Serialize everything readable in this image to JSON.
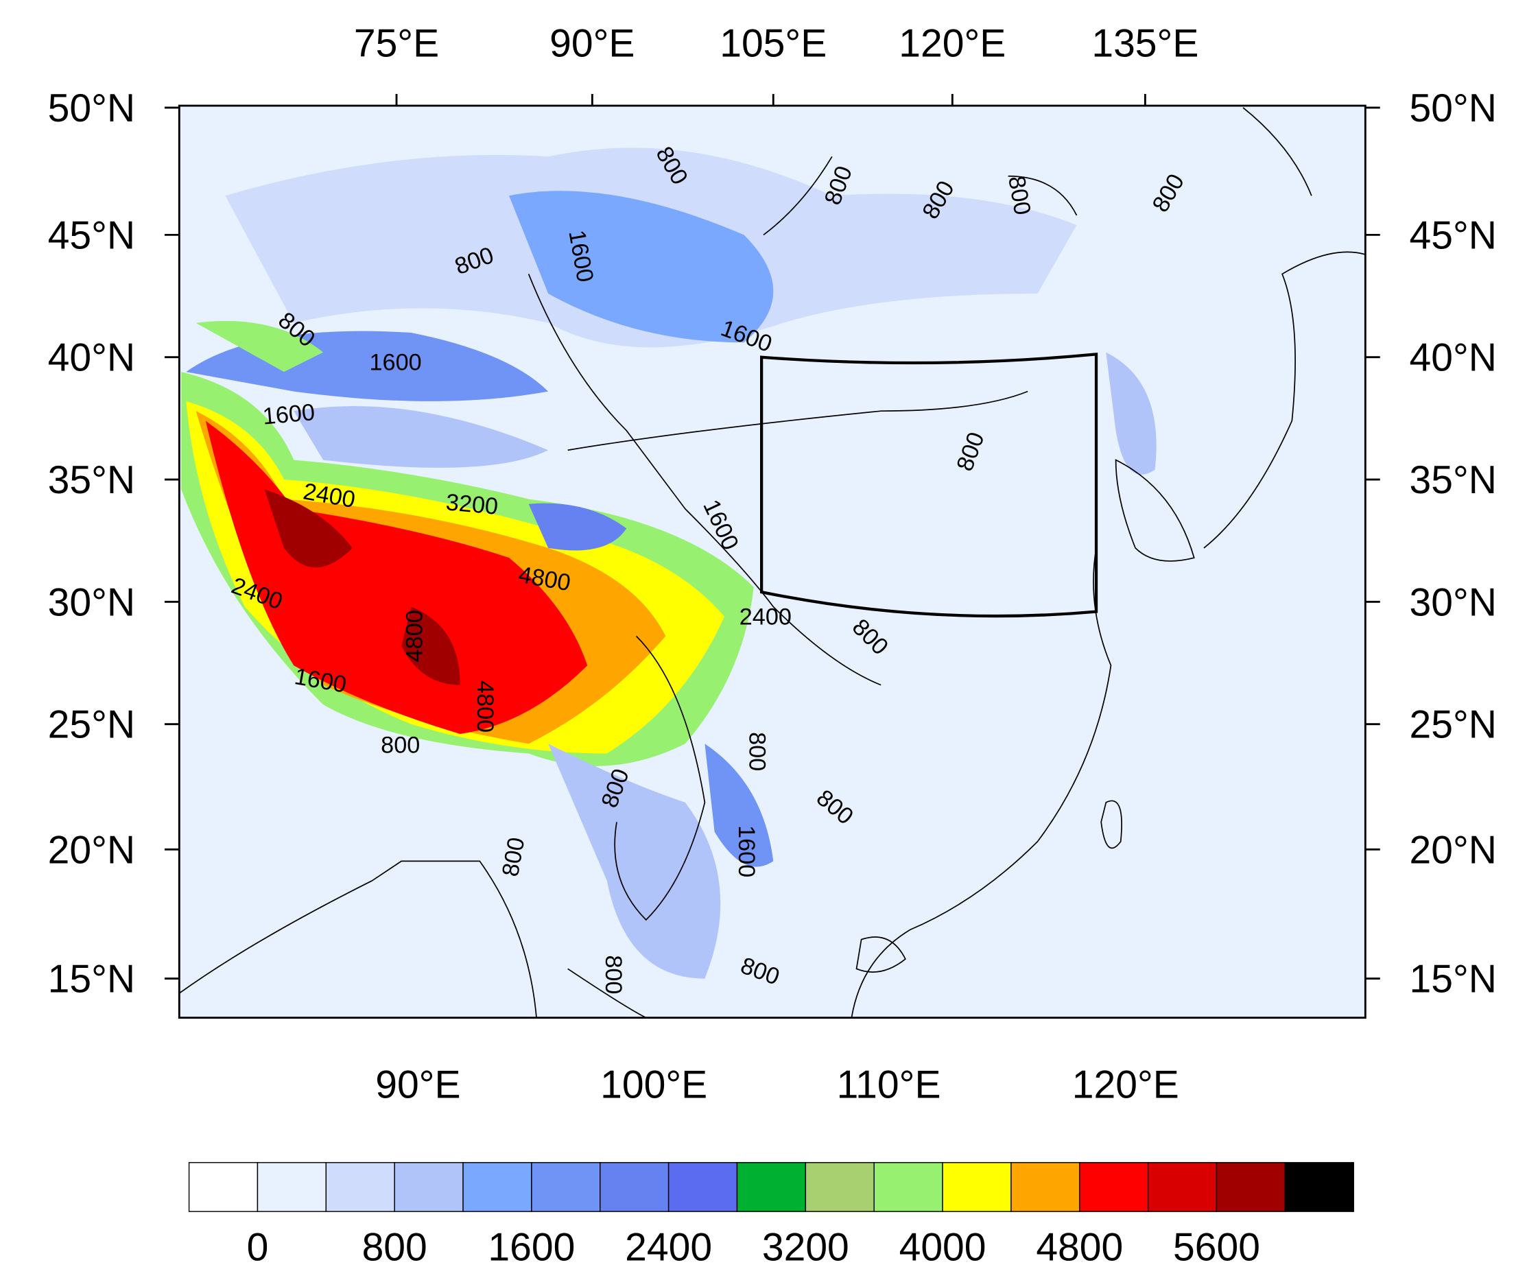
{
  "map": {
    "top_labels": [
      "75°E",
      "90°E",
      "105°E",
      "120°E",
      "135°E"
    ],
    "bottom_labels": [
      "90°E",
      "100°E",
      "110°E",
      "120°E"
    ],
    "lat_labels": [
      "50°N",
      "45°N",
      "40°N",
      "35°N",
      "30°N",
      "25°N",
      "20°N",
      "15°N"
    ],
    "contour_labels": [
      "800",
      "800",
      "800",
      "800",
      "800",
      "1600",
      "800",
      "800",
      "1600",
      "1600",
      "1600",
      "800",
      "2400",
      "3200",
      "1600",
      "4800",
      "2400",
      "2400",
      "800",
      "4800",
      "1600",
      "4800",
      "800",
      "800",
      "800",
      "800",
      "1600",
      "800",
      "800",
      "800"
    ],
    "colorbar": {
      "colors": [
        "#ffffff",
        "#e8f2ff",
        "#cfdcfc",
        "#b0c4fa",
        "#7aa8ff",
        "#6f94f5",
        "#6682f0",
        "#5c6cf0",
        "#00b030",
        "#a8d070",
        "#98f070",
        "#ffff00",
        "#ffa500",
        "#ff0000",
        "#d80000",
        "#a00000",
        "#000000"
      ],
      "labels": [
        "0",
        "800",
        "1600",
        "2400",
        "3200",
        "4000",
        "4800",
        "5600"
      ]
    }
  }
}
